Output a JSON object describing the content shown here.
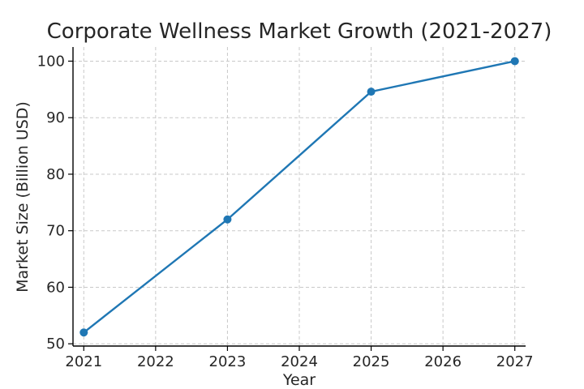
{
  "chart_data": {
    "type": "line",
    "title": "Corporate Wellness Market Growth (2021-2027)",
    "xlabel": "Year",
    "ylabel": "Market Size (Billion USD)",
    "x_ticks": [
      "2021",
      "2022",
      "2023",
      "2024",
      "2025",
      "2026",
      "2027"
    ],
    "y_ticks": [
      50,
      60,
      70,
      80,
      90,
      100
    ],
    "xlim": [
      2020.85,
      2027.15
    ],
    "ylim": [
      49.6,
      102.5
    ],
    "grid": true,
    "series": [
      {
        "color": "#1f77b4",
        "x": [
          2021,
          2023,
          2025,
          2027
        ],
        "y": [
          52,
          72,
          94.6,
          100
        ]
      }
    ]
  }
}
